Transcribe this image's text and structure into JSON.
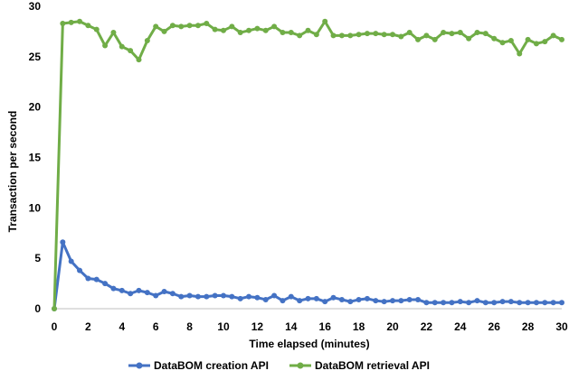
{
  "chart_data": {
    "type": "line",
    "xlabel": "Time elapsed (minutes)",
    "ylabel": "Transaction per second",
    "xlim": [
      0,
      30
    ],
    "ylim": [
      0,
      30
    ],
    "x_ticks": [
      0,
      2,
      4,
      6,
      8,
      10,
      12,
      14,
      16,
      18,
      20,
      22,
      24,
      26,
      28,
      30
    ],
    "y_ticks": [
      0,
      5,
      10,
      15,
      20,
      25,
      30
    ],
    "x_tick_labels": [
      "0",
      "2",
      "4",
      "6",
      "8",
      "10",
      "12",
      "14",
      "16",
      "18",
      "20",
      "22",
      "24",
      "26",
      "28",
      "30"
    ],
    "y_tick_labels": [
      "0",
      "5",
      "10",
      "15",
      "20",
      "25",
      "30"
    ],
    "grid": false,
    "legend_position": "bottom",
    "series": [
      {
        "name": "DataBOM creation API",
        "color": "#4472C4",
        "x": [
          0,
          0.5,
          1,
          1.5,
          2,
          2.5,
          3,
          3.5,
          4,
          4.5,
          5,
          5.5,
          6,
          6.5,
          7,
          7.5,
          8,
          8.5,
          9,
          9.5,
          10,
          10.5,
          11,
          11.5,
          12,
          12.5,
          13,
          13.5,
          14,
          14.5,
          15,
          15.5,
          16,
          16.5,
          17,
          17.5,
          18,
          18.5,
          19,
          19.5,
          20,
          20.5,
          21,
          21.5,
          22,
          22.5,
          23,
          23.5,
          24,
          24.5,
          25,
          25.5,
          26,
          26.5,
          27,
          27.5,
          28,
          28.5,
          29,
          29.5,
          30
        ],
        "y": [
          0,
          6.6,
          4.7,
          3.8,
          3.0,
          2.9,
          2.5,
          2.0,
          1.8,
          1.5,
          1.8,
          1.6,
          1.3,
          1.7,
          1.5,
          1.2,
          1.3,
          1.2,
          1.2,
          1.3,
          1.3,
          1.2,
          1.0,
          1.2,
          1.1,
          0.9,
          1.3,
          0.8,
          1.2,
          0.8,
          1.0,
          1.0,
          0.7,
          1.1,
          0.9,
          0.7,
          0.9,
          1.0,
          0.8,
          0.7,
          0.8,
          0.8,
          0.9,
          0.9,
          0.6,
          0.6,
          0.6,
          0.6,
          0.7,
          0.6,
          0.8,
          0.6,
          0.6,
          0.7,
          0.7,
          0.6,
          0.6,
          0.6,
          0.6,
          0.6,
          0.6
        ]
      },
      {
        "name": "DataBOM retrieval API",
        "color": "#70AD47",
        "x": [
          0,
          0.5,
          1,
          1.5,
          2,
          2.5,
          3,
          3.5,
          4,
          4.5,
          5,
          5.5,
          6,
          6.5,
          7,
          7.5,
          8,
          8.5,
          9,
          9.5,
          10,
          10.5,
          11,
          11.5,
          12,
          12.5,
          13,
          13.5,
          14,
          14.5,
          15,
          15.5,
          16,
          16.5,
          17,
          17.5,
          18,
          18.5,
          19,
          19.5,
          20,
          20.5,
          21,
          21.5,
          22,
          22.5,
          23,
          23.5,
          24,
          24.5,
          25,
          25.5,
          26,
          26.5,
          27,
          27.5,
          28,
          28.5,
          29,
          29.5,
          30
        ],
        "y": [
          0,
          28.3,
          28.4,
          28.5,
          28.1,
          27.7,
          26.1,
          27.4,
          26.0,
          25.6,
          24.7,
          26.6,
          28.0,
          27.5,
          28.1,
          28.0,
          28.1,
          28.1,
          28.3,
          27.7,
          27.6,
          28.0,
          27.4,
          27.6,
          27.8,
          27.6,
          28.0,
          27.4,
          27.4,
          27.1,
          27.6,
          27.2,
          28.5,
          27.1,
          27.1,
          27.1,
          27.2,
          27.3,
          27.3,
          27.2,
          27.2,
          27.0,
          27.4,
          26.7,
          27.1,
          26.7,
          27.4,
          27.3,
          27.4,
          26.8,
          27.4,
          27.3,
          26.8,
          26.4,
          26.6,
          25.3,
          26.7,
          26.3,
          26.5,
          27.1,
          26.7
        ]
      }
    ]
  }
}
